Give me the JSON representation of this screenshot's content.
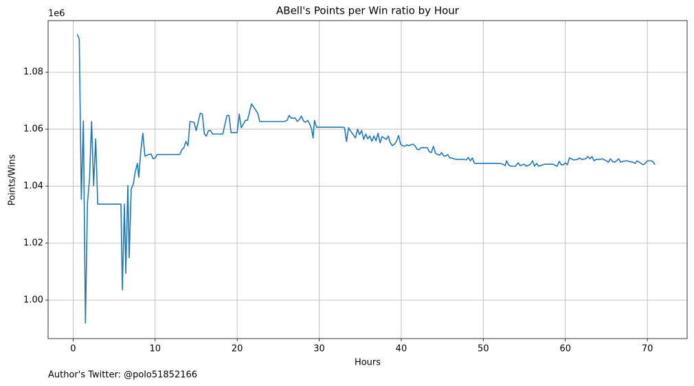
{
  "chart_data": {
    "type": "line",
    "title": "ABell's Points per Win ratio by Hour",
    "xlabel": "Hours",
    "ylabel": "Points/Wins",
    "y_offset_label": "1e6",
    "footnote": "Author's Twitter: @polo51852166",
    "grid": true,
    "xlim": [
      -3.05,
      74.85
    ],
    "ylim": [
      986500,
      1098100
    ],
    "xticks": [
      0,
      10,
      20,
      30,
      40,
      50,
      60,
      70
    ],
    "yticks": [
      {
        "value": 1000000,
        "label": "1.00"
      },
      {
        "value": 1020000,
        "label": "1.02"
      },
      {
        "value": 1040000,
        "label": "1.04"
      },
      {
        "value": 1060000,
        "label": "1.06"
      },
      {
        "value": 1080000,
        "label": "1.08"
      }
    ],
    "x": [
      0.5,
      0.75,
      1.0,
      1.25,
      1.5,
      1.75,
      2.0,
      2.25,
      2.5,
      2.75,
      3.0,
      5.83,
      6.0,
      6.25,
      6.42,
      6.67,
      6.83,
      7.08,
      7.33,
      7.58,
      7.83,
      8.0,
      8.25,
      8.5,
      8.75,
      9.25,
      9.5,
      9.75,
      10.0,
      10.25,
      13.0,
      13.25,
      13.5,
      13.75,
      14.0,
      14.25,
      14.75,
      15.0,
      15.5,
      15.75,
      16.0,
      16.25,
      16.5,
      16.75,
      17.0,
      18.25,
      18.75,
      19.0,
      19.25,
      20.0,
      20.25,
      20.5,
      21.0,
      21.25,
      21.75,
      22.5,
      22.75,
      25.75,
      26.08,
      26.33,
      26.58,
      27.08,
      27.33,
      27.58,
      27.83,
      28.08,
      28.33,
      28.58,
      28.83,
      29.08,
      29.25,
      29.42,
      29.67,
      32.83,
      33.08,
      33.33,
      33.58,
      33.83,
      34.08,
      34.42,
      34.67,
      34.92,
      35.17,
      35.42,
      35.67,
      35.92,
      36.17,
      36.42,
      36.67,
      36.92,
      37.17,
      37.42,
      37.67,
      37.92,
      38.17,
      38.42,
      38.67,
      38.92,
      39.17,
      39.42,
      39.67,
      39.92,
      40.17,
      40.42,
      40.67,
      40.92,
      41.17,
      41.42,
      41.67,
      41.92,
      42.17,
      42.42,
      43.17,
      43.42,
      43.67,
      43.92,
      44.17,
      44.42,
      44.67,
      44.92,
      45.17,
      45.42,
      45.67,
      45.92,
      46.17,
      46.42,
      46.67,
      47.17,
      47.67,
      47.92,
      48.17,
      48.42,
      48.67,
      48.92,
      52.0,
      52.42,
      52.67,
      52.83,
      53.08,
      53.33,
      53.92,
      54.25,
      54.5,
      55.0,
      55.25,
      55.75,
      56.0,
      56.25,
      56.5,
      56.75,
      57.25,
      57.5,
      58.5,
      59.0,
      59.25,
      59.5,
      59.75,
      60.0,
      60.25,
      60.5,
      60.75,
      61.0,
      61.5,
      61.75,
      62.0,
      62.5,
      62.75,
      63.0,
      63.25,
      63.5,
      63.75,
      64.25,
      64.5,
      65.0,
      65.25,
      65.5,
      65.75,
      66.0,
      66.25,
      66.5,
      66.75,
      67.0,
      67.5,
      67.75,
      68.25,
      68.5,
      68.75,
      69.0,
      69.5,
      69.75,
      70.0,
      70.5,
      70.75,
      70.92
    ],
    "series": [
      {
        "name": "Points/Wins",
        "color": "#1f77b4",
        "values": [
          1093300,
          1091600,
          1035400,
          1062900,
          992000,
          1034200,
          1042700,
          1062700,
          1040200,
          1056600,
          1033700,
          1033700,
          1003600,
          1033700,
          1009400,
          1040200,
          1014900,
          1039000,
          1040700,
          1045100,
          1048000,
          1043100,
          1052300,
          1058600,
          1050600,
          1051100,
          1051300,
          1049600,
          1049900,
          1051100,
          1051100,
          1052800,
          1053500,
          1055700,
          1054200,
          1062700,
          1062400,
          1059500,
          1065600,
          1065300,
          1058300,
          1057600,
          1059500,
          1059500,
          1058300,
          1058300,
          1064800,
          1064800,
          1058800,
          1058800,
          1065300,
          1060500,
          1063100,
          1063100,
          1068900,
          1065600,
          1062700,
          1062700,
          1063100,
          1064800,
          1063900,
          1063900,
          1062700,
          1063400,
          1064600,
          1062900,
          1062400,
          1063100,
          1061900,
          1060000,
          1056900,
          1063100,
          1060700,
          1060700,
          1060500,
          1055700,
          1060500,
          1059300,
          1058300,
          1056900,
          1060000,
          1058100,
          1059500,
          1056400,
          1058300,
          1056600,
          1057600,
          1055700,
          1057600,
          1055900,
          1058600,
          1055200,
          1057400,
          1056900,
          1056400,
          1057600,
          1055200,
          1054200,
          1054700,
          1055700,
          1057800,
          1054700,
          1054200,
          1054000,
          1054500,
          1054200,
          1054500,
          1054700,
          1054200,
          1053000,
          1052800,
          1053500,
          1053500,
          1052100,
          1051800,
          1054000,
          1051600,
          1051100,
          1050900,
          1051800,
          1050600,
          1050600,
          1051100,
          1049900,
          1049900,
          1049600,
          1049400,
          1049400,
          1049400,
          1049200,
          1050100,
          1048900,
          1049900,
          1048000,
          1048000,
          1047700,
          1047200,
          1048900,
          1047500,
          1047000,
          1047000,
          1048200,
          1047200,
          1047700,
          1047000,
          1047700,
          1048900,
          1047000,
          1048000,
          1047000,
          1047500,
          1047700,
          1047700,
          1047000,
          1048700,
          1047500,
          1047500,
          1048200,
          1047500,
          1049900,
          1049600,
          1049200,
          1049400,
          1049900,
          1049400,
          1049600,
          1050400,
          1049600,
          1050400,
          1048900,
          1049400,
          1049400,
          1049600,
          1048900,
          1048400,
          1049600,
          1048700,
          1048400,
          1048900,
          1049600,
          1048400,
          1048700,
          1048900,
          1048700,
          1048400,
          1048000,
          1048900,
          1048400,
          1047500,
          1048000,
          1048900,
          1048900,
          1048400,
          1047500
        ]
      }
    ]
  }
}
